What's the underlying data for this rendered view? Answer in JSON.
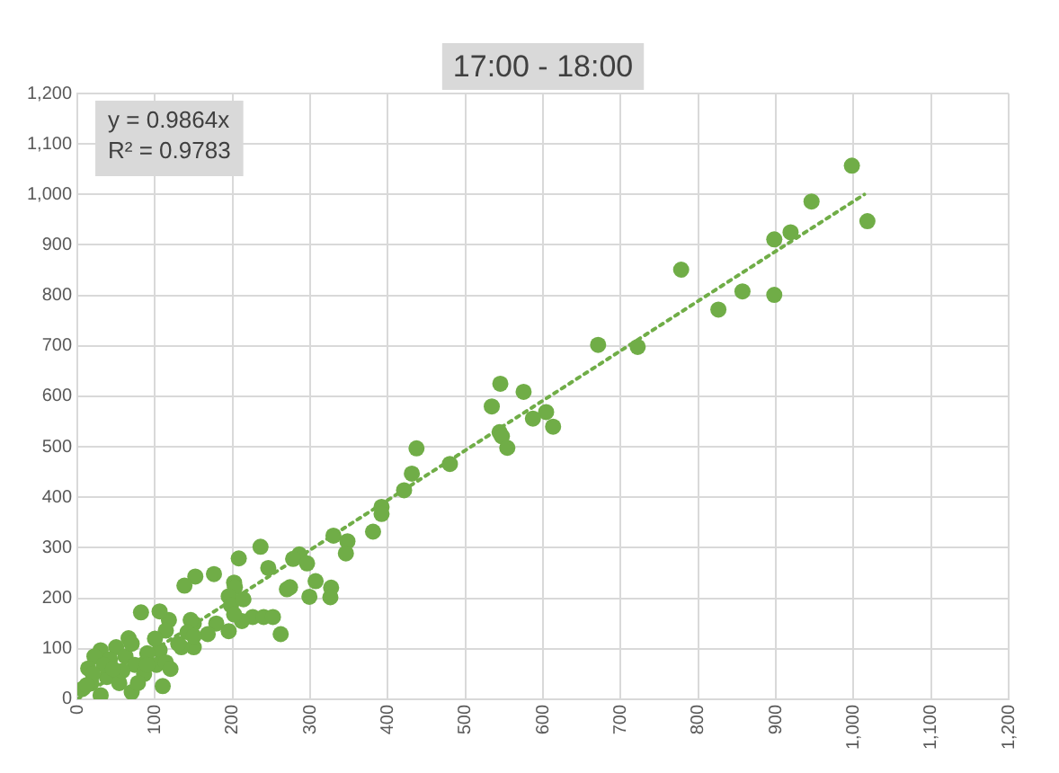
{
  "chart_data": {
    "type": "scatter",
    "title": "17:00 - 18:00",
    "annotations": [
      "y = 0.9864x",
      "R² = 0.9783"
    ],
    "xlim": [
      0,
      1200
    ],
    "xticks": [
      0,
      100,
      200,
      300,
      400,
      500,
      600,
      700,
      800,
      900,
      {
        "value": 1000,
        "label": "1,000"
      },
      {
        "value": 1100,
        "label": "1,100"
      },
      {
        "value": 1200,
        "label": "1,200"
      }
    ],
    "ylim": [
      0,
      1200
    ],
    "yticks": [
      0,
      100,
      200,
      300,
      400,
      500,
      600,
      700,
      800,
      900,
      {
        "value": 1000,
        "label": "1,000"
      },
      {
        "value": 1100,
        "label": "1,100"
      },
      {
        "value": 1200,
        "label": "1,200"
      }
    ],
    "grid": true,
    "legend": false,
    "marker": "circle",
    "series": [
      {
        "color": "#70ad47",
        "x": [
          998,
          946,
          919,
          1018,
          857,
          898,
          898,
          778,
          826,
          671,
          722,
          545,
          575,
          534,
          604,
          587,
          613,
          544,
          547,
          554,
          437,
          480,
          431,
          421,
          392,
          392,
          381,
          330,
          348,
          346,
          286,
          278,
          296,
          274,
          307,
          327,
          299,
          326,
          236,
          208,
          270,
          152,
          176,
          138,
          202,
          203,
          195,
          198,
          214,
          246,
          226,
          240,
          252,
          262,
          212,
          195,
          202,
          179,
          150,
          118,
          114,
          82,
          106,
          146,
          142,
          168,
          150,
          134,
          106,
          90,
          66,
          50,
          30,
          22,
          42,
          62,
          74,
          86,
          102,
          114,
          110,
          70,
          38,
          14,
          18,
          6,
          30,
          54,
          78,
          90,
          34,
          58,
          46,
          70,
          100,
          20,
          12,
          120,
          130,
          150
        ],
        "values": [
          1057,
          986,
          925,
          947,
          808,
          801,
          911,
          851,
          772,
          702,
          698,
          625,
          609,
          580,
          569,
          556,
          540,
          529,
          521,
          498,
          497,
          466,
          447,
          414,
          381,
          367,
          332,
          324,
          313,
          289,
          287,
          278,
          269,
          222,
          234,
          221,
          203,
          202,
          302,
          279,
          218,
          243,
          248,
          225,
          231,
          222,
          204,
          186,
          198,
          260,
          163,
          163,
          163,
          129,
          155,
          135,
          168,
          150,
          150,
          157,
          136,
          172,
          174,
          157,
          133,
          129,
          103,
          103,
          97,
          91,
          121,
          103,
          97,
          85,
          79,
          85,
          68,
          50,
          68,
          73,
          26,
          14,
          44,
          61,
          32,
          20,
          8,
          32,
          32,
          68,
          68,
          56,
          60,
          110,
          120,
          50,
          28,
          60,
          110,
          125
        ]
      },
      {
        "type": "line",
        "color": "#70ad47",
        "line_style": "dotted",
        "marker": "none",
        "x": [
          0,
          1014
        ],
        "values": [
          0,
          1000
        ]
      }
    ]
  }
}
